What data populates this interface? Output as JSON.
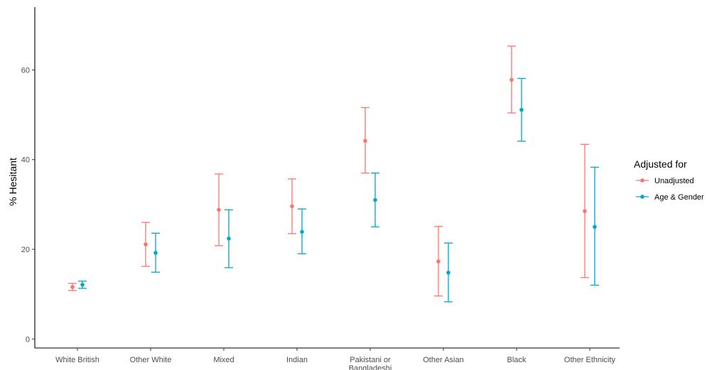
{
  "chart_data": {
    "type": "scatter",
    "title": "",
    "xlabel": "",
    "ylabel": "% Hesitant",
    "ylim": [
      -2,
      74
    ],
    "yticks": [
      0,
      20,
      40,
      60
    ],
    "categories": [
      "White British",
      "Other White",
      "Mixed",
      "Indian",
      "Pakistani or Bangladeshi",
      "Other Asian",
      "Black",
      "Other Ethnicity"
    ],
    "category_labels": [
      [
        "White British"
      ],
      [
        "Other White"
      ],
      [
        "Mixed"
      ],
      [
        "Indian"
      ],
      [
        "Pakistani or",
        "Bangladeshi"
      ],
      [
        "Other Asian"
      ],
      [
        "Black"
      ],
      [
        "Other Ethnicity"
      ]
    ],
    "grid": false,
    "legend": {
      "title": "Adjusted for",
      "position": "right"
    },
    "series": [
      {
        "name": "Unadjusted",
        "color": "#f8766d",
        "values": [
          11.6,
          21.1,
          28.8,
          29.6,
          44.2,
          17.3,
          57.8,
          28.5
        ],
        "lower": [
          10.8,
          16.2,
          20.8,
          23.5,
          37.0,
          9.6,
          50.4,
          13.7
        ],
        "upper": [
          12.4,
          26.0,
          36.8,
          35.7,
          51.6,
          25.1,
          65.3,
          43.4
        ]
      },
      {
        "name": "Age & Gender",
        "color": "#00a9c4",
        "values": [
          12.1,
          19.2,
          22.4,
          23.9,
          31.0,
          14.8,
          51.1,
          25.0
        ],
        "lower": [
          11.3,
          14.9,
          15.9,
          19.0,
          25.0,
          8.3,
          44.1,
          12.0
        ],
        "upper": [
          12.9,
          23.6,
          28.8,
          29.0,
          37.0,
          21.4,
          58.1,
          38.3
        ]
      }
    ]
  }
}
